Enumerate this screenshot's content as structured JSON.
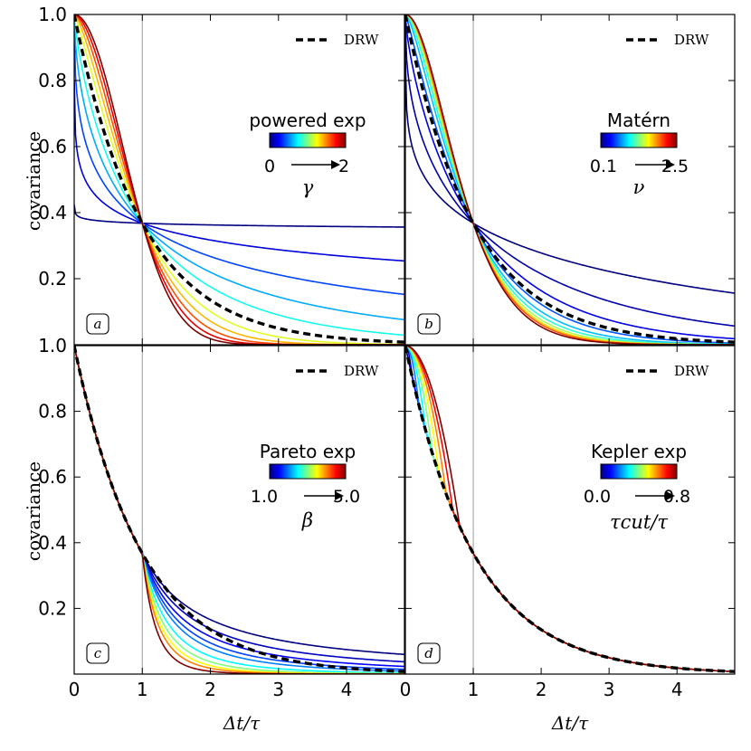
{
  "chart_data": {
    "type": "line",
    "x_axis_label": "Δt/τ",
    "y_axis_label": "covariance",
    "xlim": [
      0,
      4.85
    ],
    "ylim": [
      0,
      1.0
    ],
    "x_ticks": [
      "0",
      "1",
      "2",
      "3",
      "4"
    ],
    "y_ticks": [
      "1.0",
      "0.8",
      "0.6",
      "0.4",
      "0.2"
    ],
    "reference_line_x": 1,
    "colormap": [
      "#00007f",
      "#0000ff",
      "#007fff",
      "#00ffff",
      "#7fff7f",
      "#ffff00",
      "#ff7f00",
      "#ff0000",
      "#7f0000"
    ],
    "panels": [
      {
        "label": "a",
        "legend": "DRW",
        "colorbar_title": "powered exp",
        "range_min": "0",
        "range_max": "2",
        "param": "γ",
        "family": "powered_exp",
        "params": [
          0.02,
          0.2,
          0.4,
          0.6,
          0.8,
          1.2,
          1.4,
          1.6,
          1.8,
          2.0
        ],
        "series": [
          {
            "name": "DRW",
            "function": "exp(-Δt/τ)"
          }
        ]
      },
      {
        "label": "b",
        "legend": "DRW",
        "colorbar_title": "Matérn",
        "range_min": "0.1",
        "range_max": "2.5",
        "param": "ν",
        "family": "matern",
        "params": [
          0.1,
          0.2,
          0.35,
          0.6,
          0.85,
          1.1,
          1.4,
          1.7,
          2.0,
          2.5
        ],
        "series": [
          {
            "name": "DRW",
            "function": "exp(-Δt/τ)"
          }
        ]
      },
      {
        "label": "c",
        "legend": "DRW",
        "colorbar_title": "Pareto exp",
        "range_min": "1.0",
        "range_max": "5.0",
        "param": "β",
        "family": "pareto_exp",
        "params": [
          1.0,
          1.25,
          1.5,
          1.75,
          2.0,
          2.5,
          3.0,
          3.5,
          4.0,
          5.0
        ],
        "series": [
          {
            "name": "DRW",
            "function": "exp(-Δt/τ)"
          }
        ]
      },
      {
        "label": "d",
        "legend": "DRW",
        "colorbar_title": "Kepler exp",
        "range_min": "0.0",
        "range_max": "0.8",
        "param": "τcut/τ",
        "family": "kepler_exp",
        "params": [
          0.0,
          0.1,
          0.2,
          0.3,
          0.4,
          0.5,
          0.6,
          0.7,
          0.8
        ],
        "series": [
          {
            "name": "DRW",
            "function": "exp(-Δt/τ)"
          }
        ]
      }
    ]
  }
}
